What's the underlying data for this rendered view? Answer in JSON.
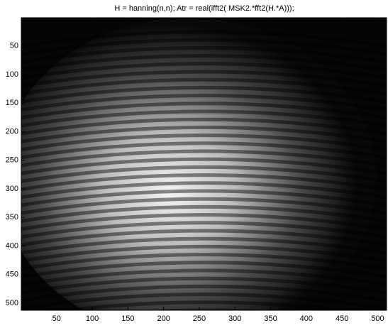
{
  "chart_data": {
    "type": "image",
    "title": "H = hanning(n,n); Atr = real(ifft2( MSK2.*fft2(H.*A)));",
    "colormap": "gray",
    "xlim": [
      0.5,
      512.5
    ],
    "ylim": [
      0.5,
      512.5
    ],
    "ydir": "reverse",
    "xticks": [
      50,
      100,
      150,
      200,
      250,
      300,
      350,
      400,
      450,
      500
    ],
    "yticks": [
      50,
      100,
      150,
      200,
      250,
      300,
      350,
      400,
      450,
      500
    ]
  }
}
